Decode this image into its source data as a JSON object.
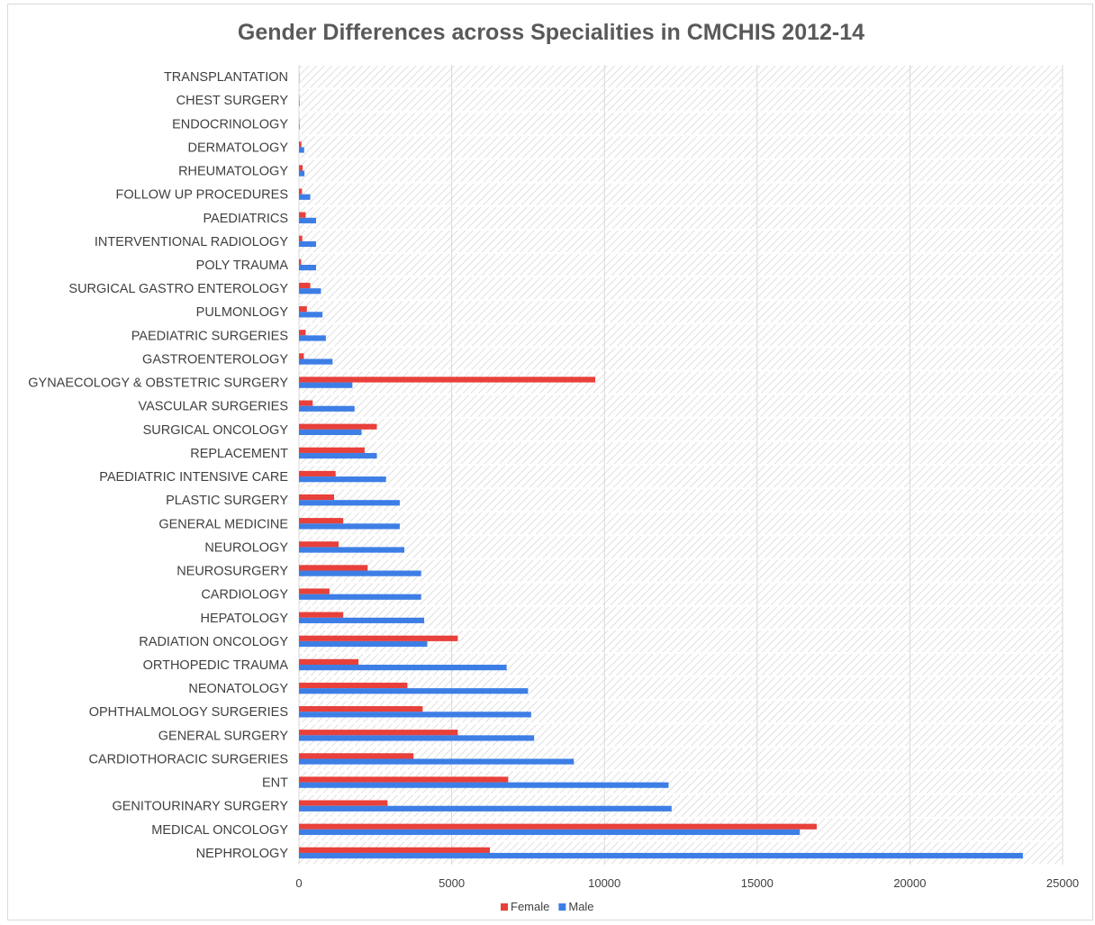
{
  "chart_data": {
    "type": "bar",
    "orientation": "horizontal",
    "title": "Gender Differences across Specialities in CMCHIS 2012-14",
    "xlabel": "",
    "ylabel": "",
    "xlim": [
      0,
      25000
    ],
    "xticks": [
      "0",
      "5000",
      "10000",
      "15000",
      "20000",
      "25000"
    ],
    "grid": "vertical",
    "legend": "bottom",
    "categories": [
      "TRANSPLANTATION",
      "CHEST SURGERY",
      "ENDOCRINOLOGY",
      "DERMATOLOGY",
      "RHEUMATOLOGY",
      "FOLLOW UP PROCEDURES",
      "PAEDIATRICS",
      "INTERVENTIONAL RADIOLOGY",
      "POLY TRAUMA",
      "SURGICAL GASTRO ENTEROLOGY",
      "PULMONLOGY",
      "PAEDIATRIC SURGERIES",
      "GASTROENTEROLOGY",
      "GYNAECOLOGY & OBSTETRIC SURGERY",
      "VASCULAR SURGERIES",
      "SURGICAL ONCOLOGY",
      "REPLACEMENT",
      "PAEDIATRIC INTENSIVE CARE",
      "PLASTIC SURGERY",
      "GENERAL MEDICINE",
      "NEUROLOGY",
      "NEUROSURGERY",
      "CARDIOLOGY",
      "HEPATOLOGY",
      "RADIATION ONCOLOGY",
      "ORTHOPEDIC TRAUMA",
      "NEONATOLOGY",
      "OPHTHALMOLOGY SURGERIES",
      "GENERAL SURGERY",
      "CARDIOTHORACIC SURGERIES",
      "ENT",
      "GENITOURINARY SURGERY",
      "MEDICAL ONCOLOGY",
      "NEPHROLOGY"
    ],
    "series": [
      {
        "name": "Female",
        "color": "#e8403a",
        "values": [
          5,
          10,
          10,
          80,
          120,
          100,
          220,
          110,
          70,
          370,
          260,
          220,
          160,
          9700,
          450,
          2550,
          2150,
          1200,
          1150,
          1450,
          1300,
          2250,
          1000,
          1450,
          5200,
          1950,
          3550,
          4050,
          5200,
          3750,
          6850,
          2900,
          16950,
          6250
        ]
      },
      {
        "name": "Male",
        "color": "#3d7ee6",
        "values": [
          10,
          20,
          20,
          170,
          180,
          370,
          560,
          560,
          560,
          720,
          770,
          880,
          1100,
          1750,
          1820,
          2050,
          2550,
          2850,
          3300,
          3300,
          3450,
          4000,
          4000,
          4100,
          4200,
          6800,
          7500,
          7600,
          7700,
          9000,
          12100,
          12200,
          16400,
          23700
        ]
      }
    ]
  },
  "colors": {
    "plot_background": "#ffffff",
    "hatch": "#d6d6d6",
    "gridline": "#d9d9d9",
    "text": "#404040",
    "title": "#595959"
  }
}
